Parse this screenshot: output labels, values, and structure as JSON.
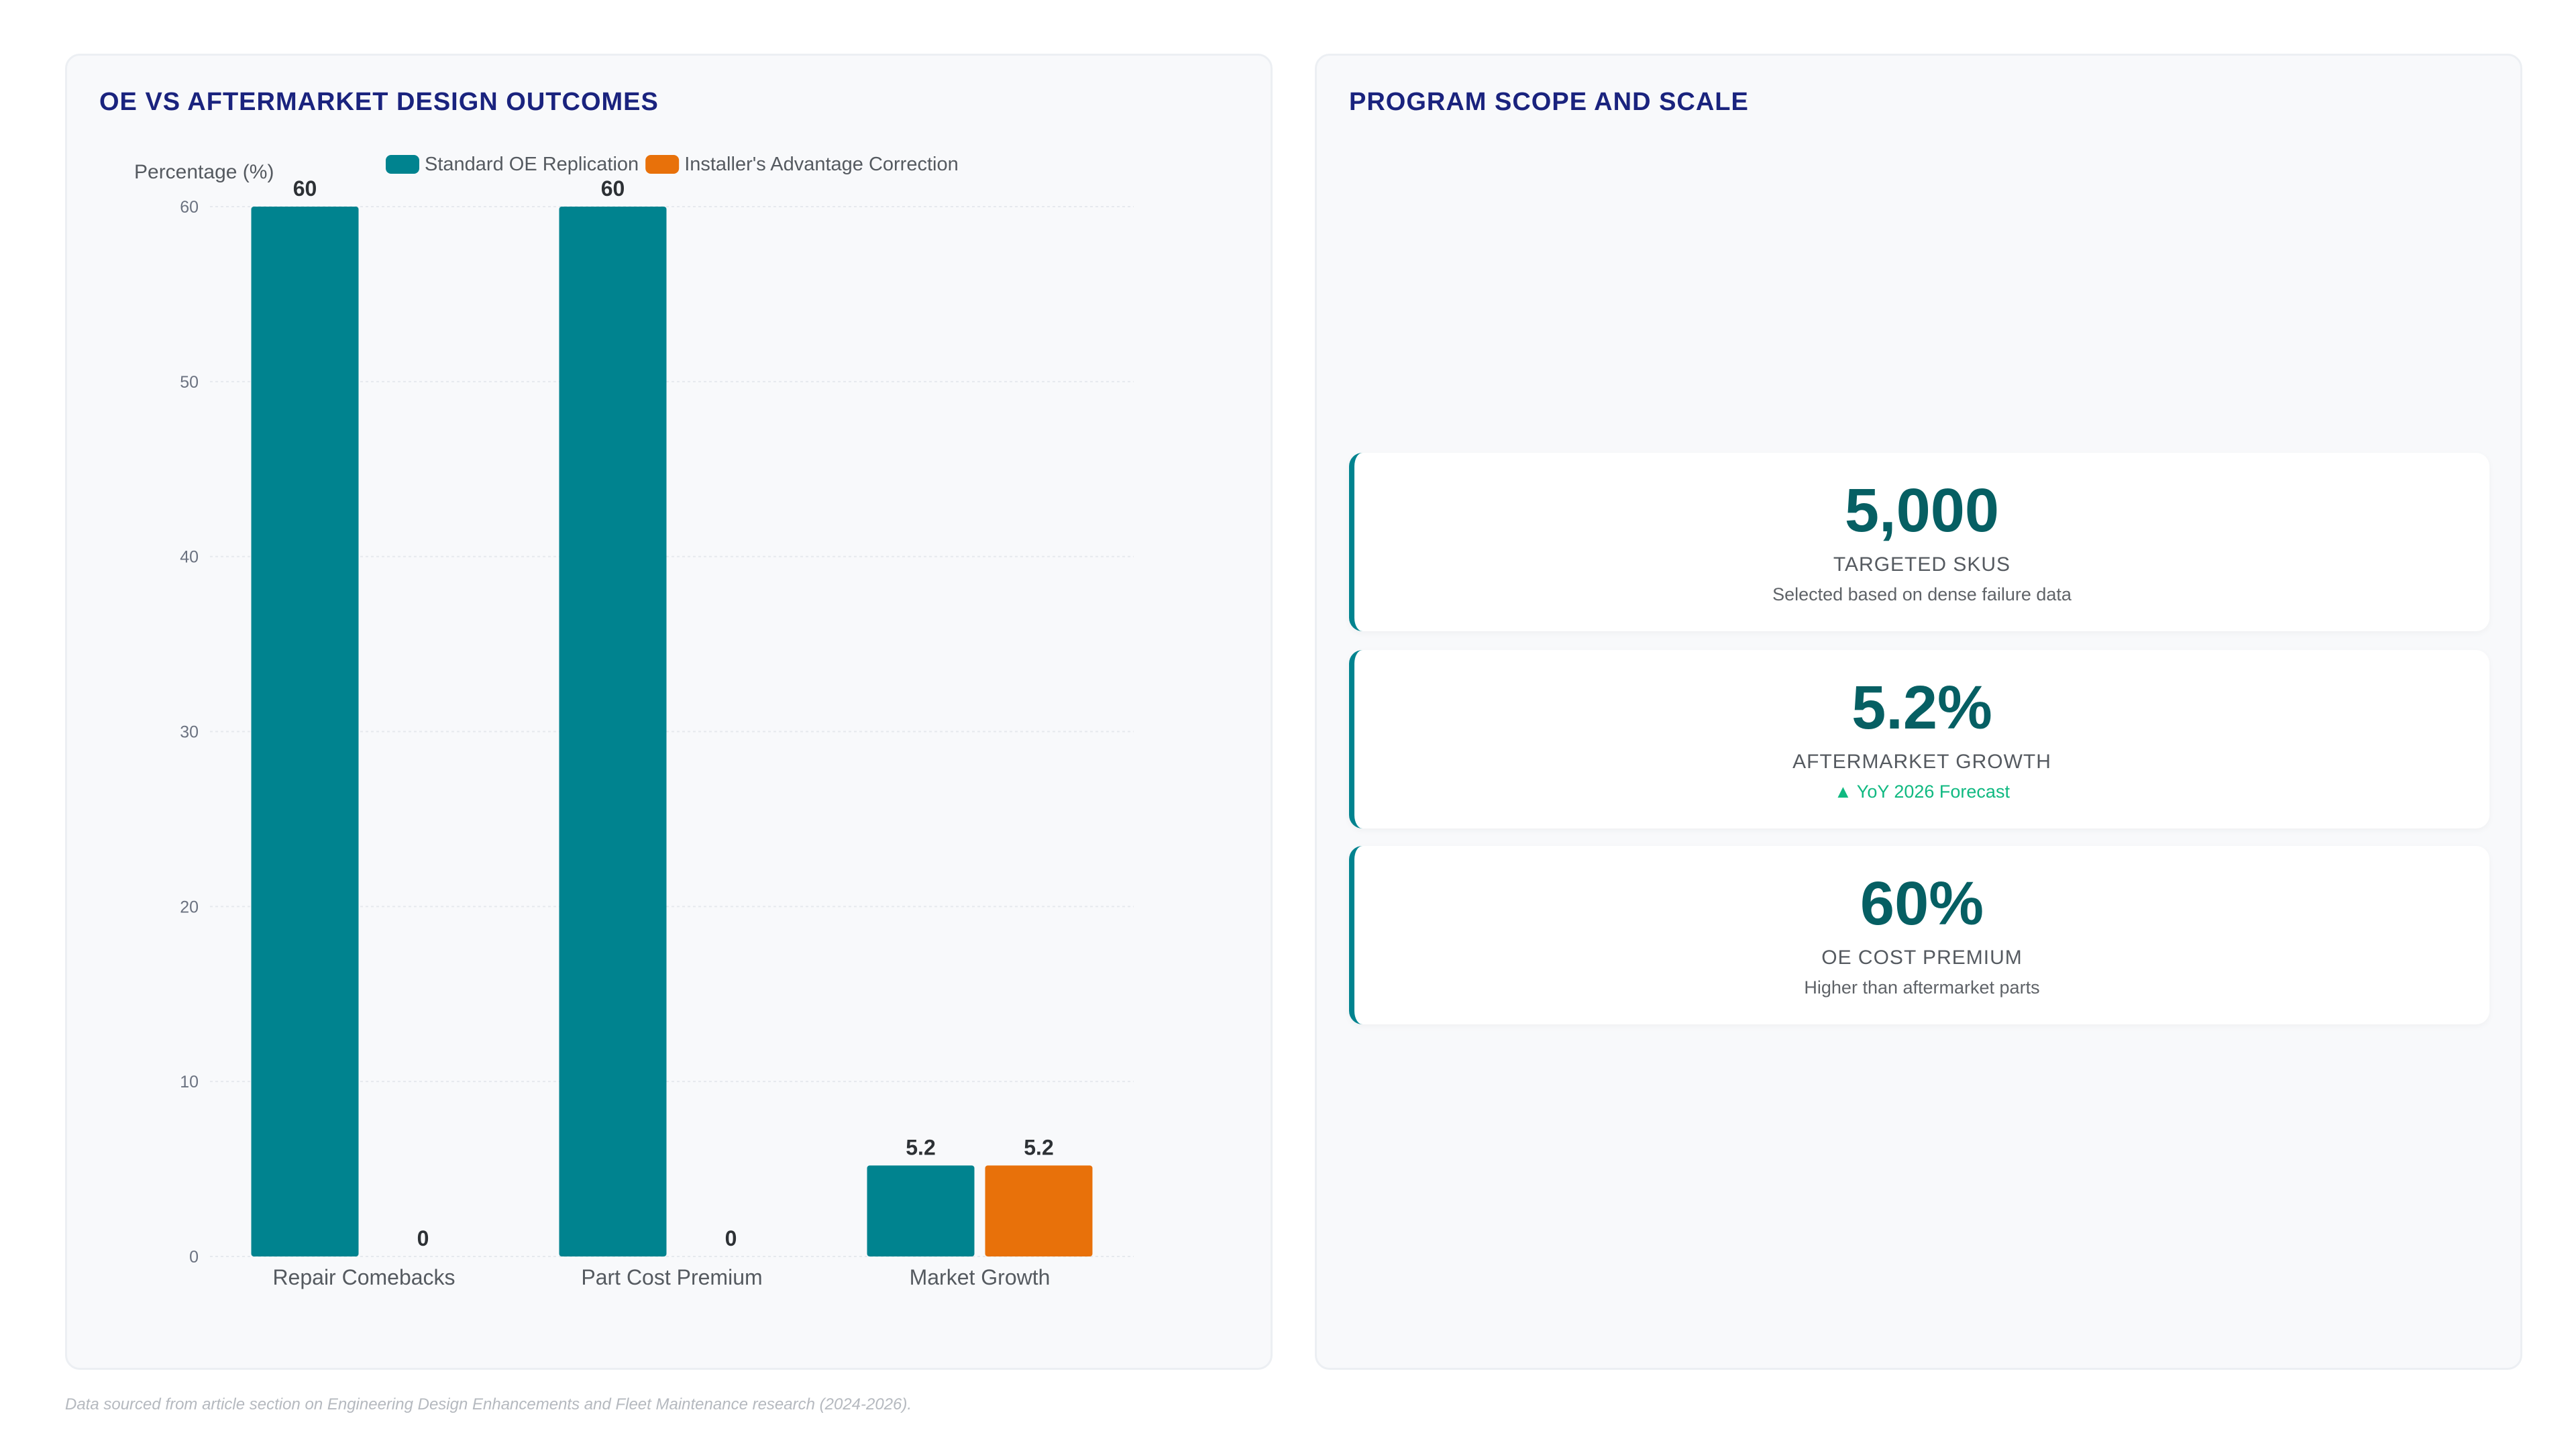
{
  "left_panel": {
    "title": "OE VS AFTERMARKET DESIGN OUTCOMES"
  },
  "chart_data": {
    "type": "bar",
    "title": "OE VS AFTERMARKET DESIGN OUTCOMES",
    "ylabel": "Percentage (%)",
    "xlabel": "",
    "categories": [
      "Repair Comebacks",
      "Part Cost Premium",
      "Market Growth"
    ],
    "series": [
      {
        "name": "Standard OE Replication",
        "values": [
          60,
          60,
          5.2
        ],
        "color": "#00838f"
      },
      {
        "name": "Installer's Advantage Correction",
        "values": [
          0,
          0,
          5.2
        ],
        "color": "#e8710a"
      }
    ],
    "ylim": [
      0,
      60
    ],
    "yticks": [
      0,
      10,
      20,
      30,
      40,
      50,
      60
    ],
    "grid": true,
    "legend_position": "top",
    "data_labels": true
  },
  "right_panel": {
    "title": "PROGRAM SCOPE AND SCALE",
    "kpis": [
      {
        "value": "5,000",
        "label": "TARGETED SKUS",
        "sub": "Selected based on dense failure data",
        "sub_positive": false
      },
      {
        "value": "5.2%",
        "label": "AFTERMARKET GROWTH",
        "sub": "▲ YoY 2026 Forecast",
        "sub_positive": true
      },
      {
        "value": "60%",
        "label": "OE COST PREMIUM",
        "sub": "Higher than aftermarket parts",
        "sub_positive": false
      }
    ]
  },
  "footnote": "Data sourced from article section on Engineering Design Enhancements and Fleet Maintenance research (2024-2026).",
  "colors": {
    "accent": "#00838f",
    "kpi_value": "#065f63",
    "title": "#1a237e",
    "orange": "#e8710a",
    "positive": "#10b981"
  }
}
